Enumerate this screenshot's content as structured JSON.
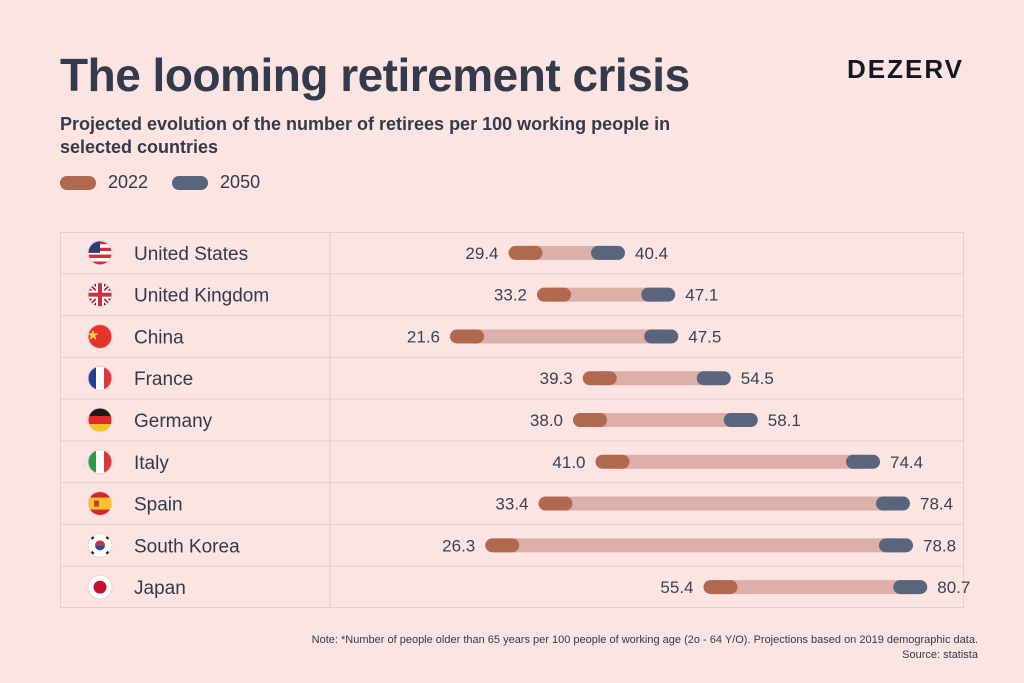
{
  "header": {
    "title": "The looming retirement crisis",
    "brand": "DEZERV",
    "subtitle": "Projected evolution of the number of retirees per 100 working people in selected countries"
  },
  "legend": [
    {
      "label": "2022",
      "color": "#b0684e"
    },
    {
      "label": "2050",
      "color": "#59647d"
    }
  ],
  "chart_data": {
    "type": "dumbbell",
    "title": "The looming retirement crisis",
    "subtitle": "Projected evolution of the number of retirees per 100 working people in selected countries",
    "categories": [
      "United States",
      "United Kingdom",
      "China",
      "France",
      "Germany",
      "Italy",
      "Spain",
      "South Korea",
      "Japan"
    ],
    "series": [
      {
        "name": "2022",
        "values": [
          29.4,
          33.2,
          21.6,
          39.3,
          38.0,
          41.0,
          33.4,
          26.3,
          55.4
        ]
      },
      {
        "name": "2050",
        "values": [
          40.4,
          47.1,
          47.5,
          54.5,
          58.1,
          74.4,
          78.4,
          78.8,
          80.7
        ]
      }
    ],
    "value_labels": {
      "2022": [
        "29.4",
        "33.2",
        "21.6",
        "39.3",
        "38.0",
        "41.0",
        "33.4",
        "26.3",
        "55.4"
      ],
      "2050": [
        "40.4",
        "47.1",
        "47.5",
        "54.5",
        "58.1",
        "74.4",
        "78.4",
        "78.8",
        "80.7"
      ]
    },
    "flags": [
      "us-flag-icon",
      "uk-flag-icon",
      "china-flag-icon",
      "france-flag-icon",
      "germany-flag-icon",
      "italy-flag-icon",
      "spain-flag-icon",
      "south-korea-flag-icon",
      "japan-flag-icon"
    ],
    "colors": {
      "2022": "#b0684e",
      "2050": "#59647d",
      "connector": "#dcb0a8",
      "grid": "#e6cfcc"
    },
    "xlim": [
      0,
      100
    ],
    "grid": true,
    "legend_position": "top-left"
  },
  "footer": {
    "note": "Note: *Number of people older than 65 years per 100 people of working age (2o - 64 Y/O). Projections based on 2019 demographic data.",
    "source": "Source: statista"
  }
}
